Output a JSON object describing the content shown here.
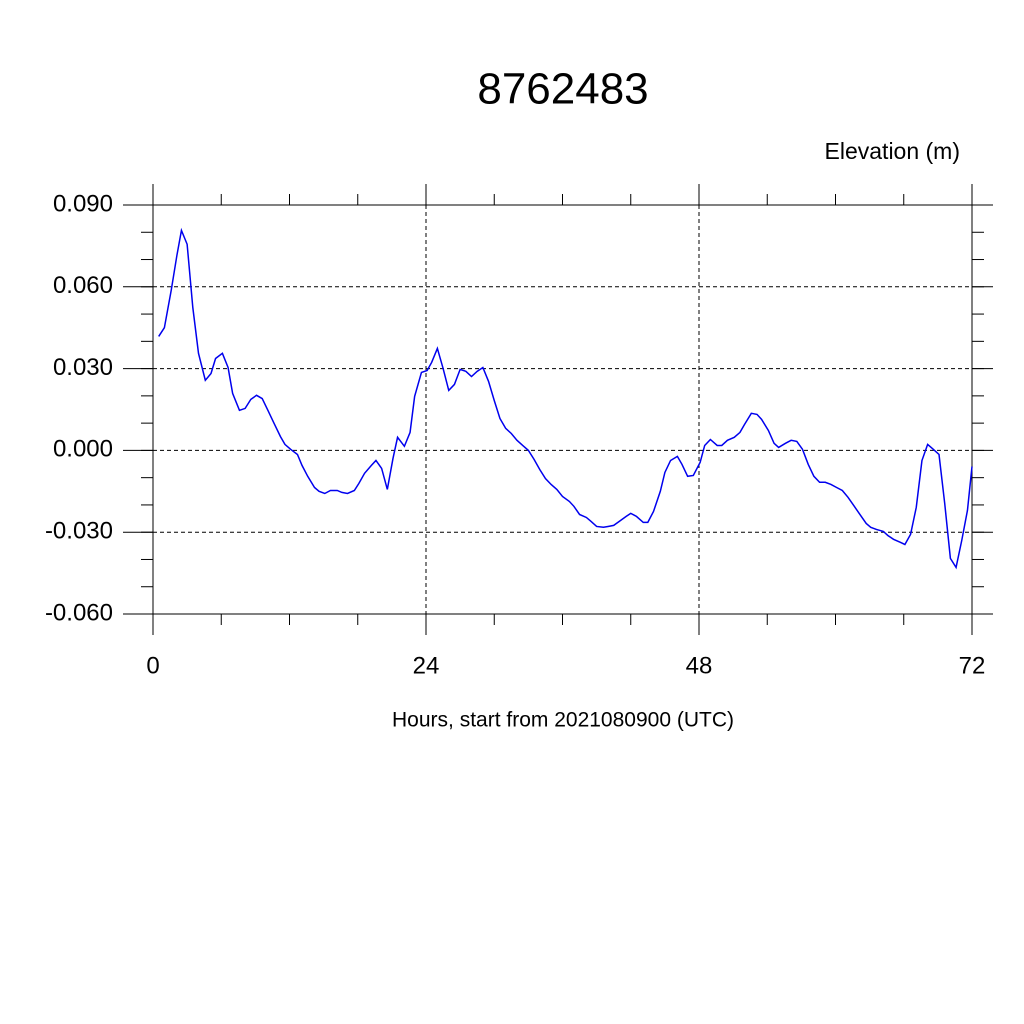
{
  "chart_data": {
    "type": "line",
    "title": "8762483",
    "subtitle": "Elevation (m)",
    "xlabel": "Hours, start from 2021080900 (UTC)",
    "xlim": [
      0,
      72
    ],
    "xticks": [
      0,
      24,
      48,
      72
    ],
    "ylim": [
      -0.06,
      0.09
    ],
    "yticks": [
      {
        "value": -0.06,
        "label": "-0.060"
      },
      {
        "value": -0.03,
        "label": "-0.030"
      },
      {
        "value": 0,
        "label": "0.000"
      },
      {
        "value": 0.03,
        "label": "0.030"
      },
      {
        "value": 0.06,
        "label": "0.060"
      },
      {
        "value": 0.09,
        "label": "0.090"
      }
    ],
    "grid": true,
    "x": [
      0.5,
      1.0,
      1.6,
      2.1,
      2.5,
      3.0,
      3.5,
      4.0,
      4.6,
      5.1,
      5.5,
      6.1,
      6.6,
      7.0,
      7.6,
      8.1,
      8.6,
      9.1,
      9.6,
      10.1,
      10.6,
      11.2,
      11.6,
      12.1,
      12.7,
      13.1,
      13.6,
      14.2,
      14.6,
      15.1,
      15.6,
      16.2,
      16.6,
      17.1,
      17.7,
      18.1,
      18.6,
      19.2,
      19.6,
      20.1,
      20.6,
      21.1,
      21.5,
      22.1,
      22.6,
      23.0,
      23.6,
      24.1,
      24.5,
      25.0,
      25.5,
      26.0,
      26.5,
      27.0,
      27.5,
      28.0,
      28.5,
      29.0,
      29.5,
      30.0,
      30.5,
      31.0,
      31.5,
      32.0,
      32.5,
      33.0,
      33.5,
      34.0,
      34.5,
      35.0,
      35.5,
      36.0,
      36.6,
      37.0,
      37.5,
      38.1,
      38.5,
      39.0,
      39.6,
      40.0,
      40.5,
      41.1,
      41.6,
      42.0,
      42.5,
      43.1,
      43.5,
      44.0,
      44.6,
      45.0,
      45.5,
      46.1,
      46.5,
      47.0,
      47.5,
      48.1,
      48.5,
      49.0,
      49.6,
      50.0,
      50.5,
      51.1,
      51.6,
      52.0,
      52.6,
      53.1,
      53.5,
      54.1,
      54.6,
      55.0,
      55.6,
      56.1,
      56.6,
      57.1,
      57.6,
      58.1,
      58.6,
      59.1,
      59.6,
      60.1,
      60.6,
      61.1,
      61.6,
      62.2,
      62.7,
      63.1,
      63.6,
      64.2,
      64.6,
      65.1,
      65.7,
      66.1,
      66.6,
      67.1,
      67.6,
      68.1,
      68.6,
      69.1,
      69.6,
      70.1,
      70.6,
      71.1,
      71.6,
      72.0
    ],
    "series": [
      {
        "name": "Elevation",
        "color": "#0000ee",
        "values": [
          0.0418,
          0.045,
          0.0587,
          0.0715,
          0.0807,
          0.0756,
          0.0524,
          0.0356,
          0.0257,
          0.0282,
          0.0337,
          0.0356,
          0.0304,
          0.0209,
          0.0147,
          0.0154,
          0.0187,
          0.0202,
          0.019,
          0.0147,
          0.0103,
          0.0051,
          0.0022,
          0.0004,
          -0.0015,
          -0.0055,
          -0.0095,
          -0.0136,
          -0.015,
          -0.0158,
          -0.0147,
          -0.0147,
          -0.0154,
          -0.0158,
          -0.0147,
          -0.0121,
          -0.0084,
          -0.0055,
          -0.0037,
          -0.0066,
          -0.0143,
          -0.0029,
          0.0048,
          0.0015,
          0.0066,
          0.0198,
          0.0286,
          0.0293,
          0.0323,
          0.0374,
          0.0301,
          0.022,
          0.0242,
          0.0297,
          0.029,
          0.0271,
          0.029,
          0.0304,
          0.0253,
          0.0183,
          0.0117,
          0.0081,
          0.0062,
          0.0037,
          0.0018,
          0,
          -0.0033,
          -0.007,
          -0.0103,
          -0.0125,
          -0.0143,
          -0.0169,
          -0.0187,
          -0.0205,
          -0.0235,
          -0.0246,
          -0.026,
          -0.0279,
          -0.0282,
          -0.0279,
          -0.0275,
          -0.0257,
          -0.0242,
          -0.0231,
          -0.0242,
          -0.0264,
          -0.0264,
          -0.0224,
          -0.015,
          -0.0081,
          -0.0037,
          -0.0022,
          -0.0051,
          -0.0095,
          -0.0092,
          -0.0044,
          0.0018,
          0.004,
          0.0018,
          0.0018,
          0.0037,
          0.0048,
          0.0066,
          0.0095,
          0.0136,
          0.0132,
          0.0114,
          0.0073,
          0.0026,
          0.0011,
          0.0026,
          0.0037,
          0.0033,
          0.0004,
          -0.0051,
          -0.0095,
          -0.0117,
          -0.0117,
          -0.0125,
          -0.0136,
          -0.0147,
          -0.0172,
          -0.0202,
          -0.0238,
          -0.0268,
          -0.0282,
          -0.029,
          -0.0297,
          -0.0312,
          -0.0326,
          -0.0337,
          -0.0345,
          -0.0308,
          -0.0209,
          -0.0037,
          0.0022,
          0.0004,
          -0.0015,
          -0.0194,
          -0.0396,
          -0.0429,
          -0.033,
          -0.022,
          -0.0059
        ]
      }
    ]
  }
}
